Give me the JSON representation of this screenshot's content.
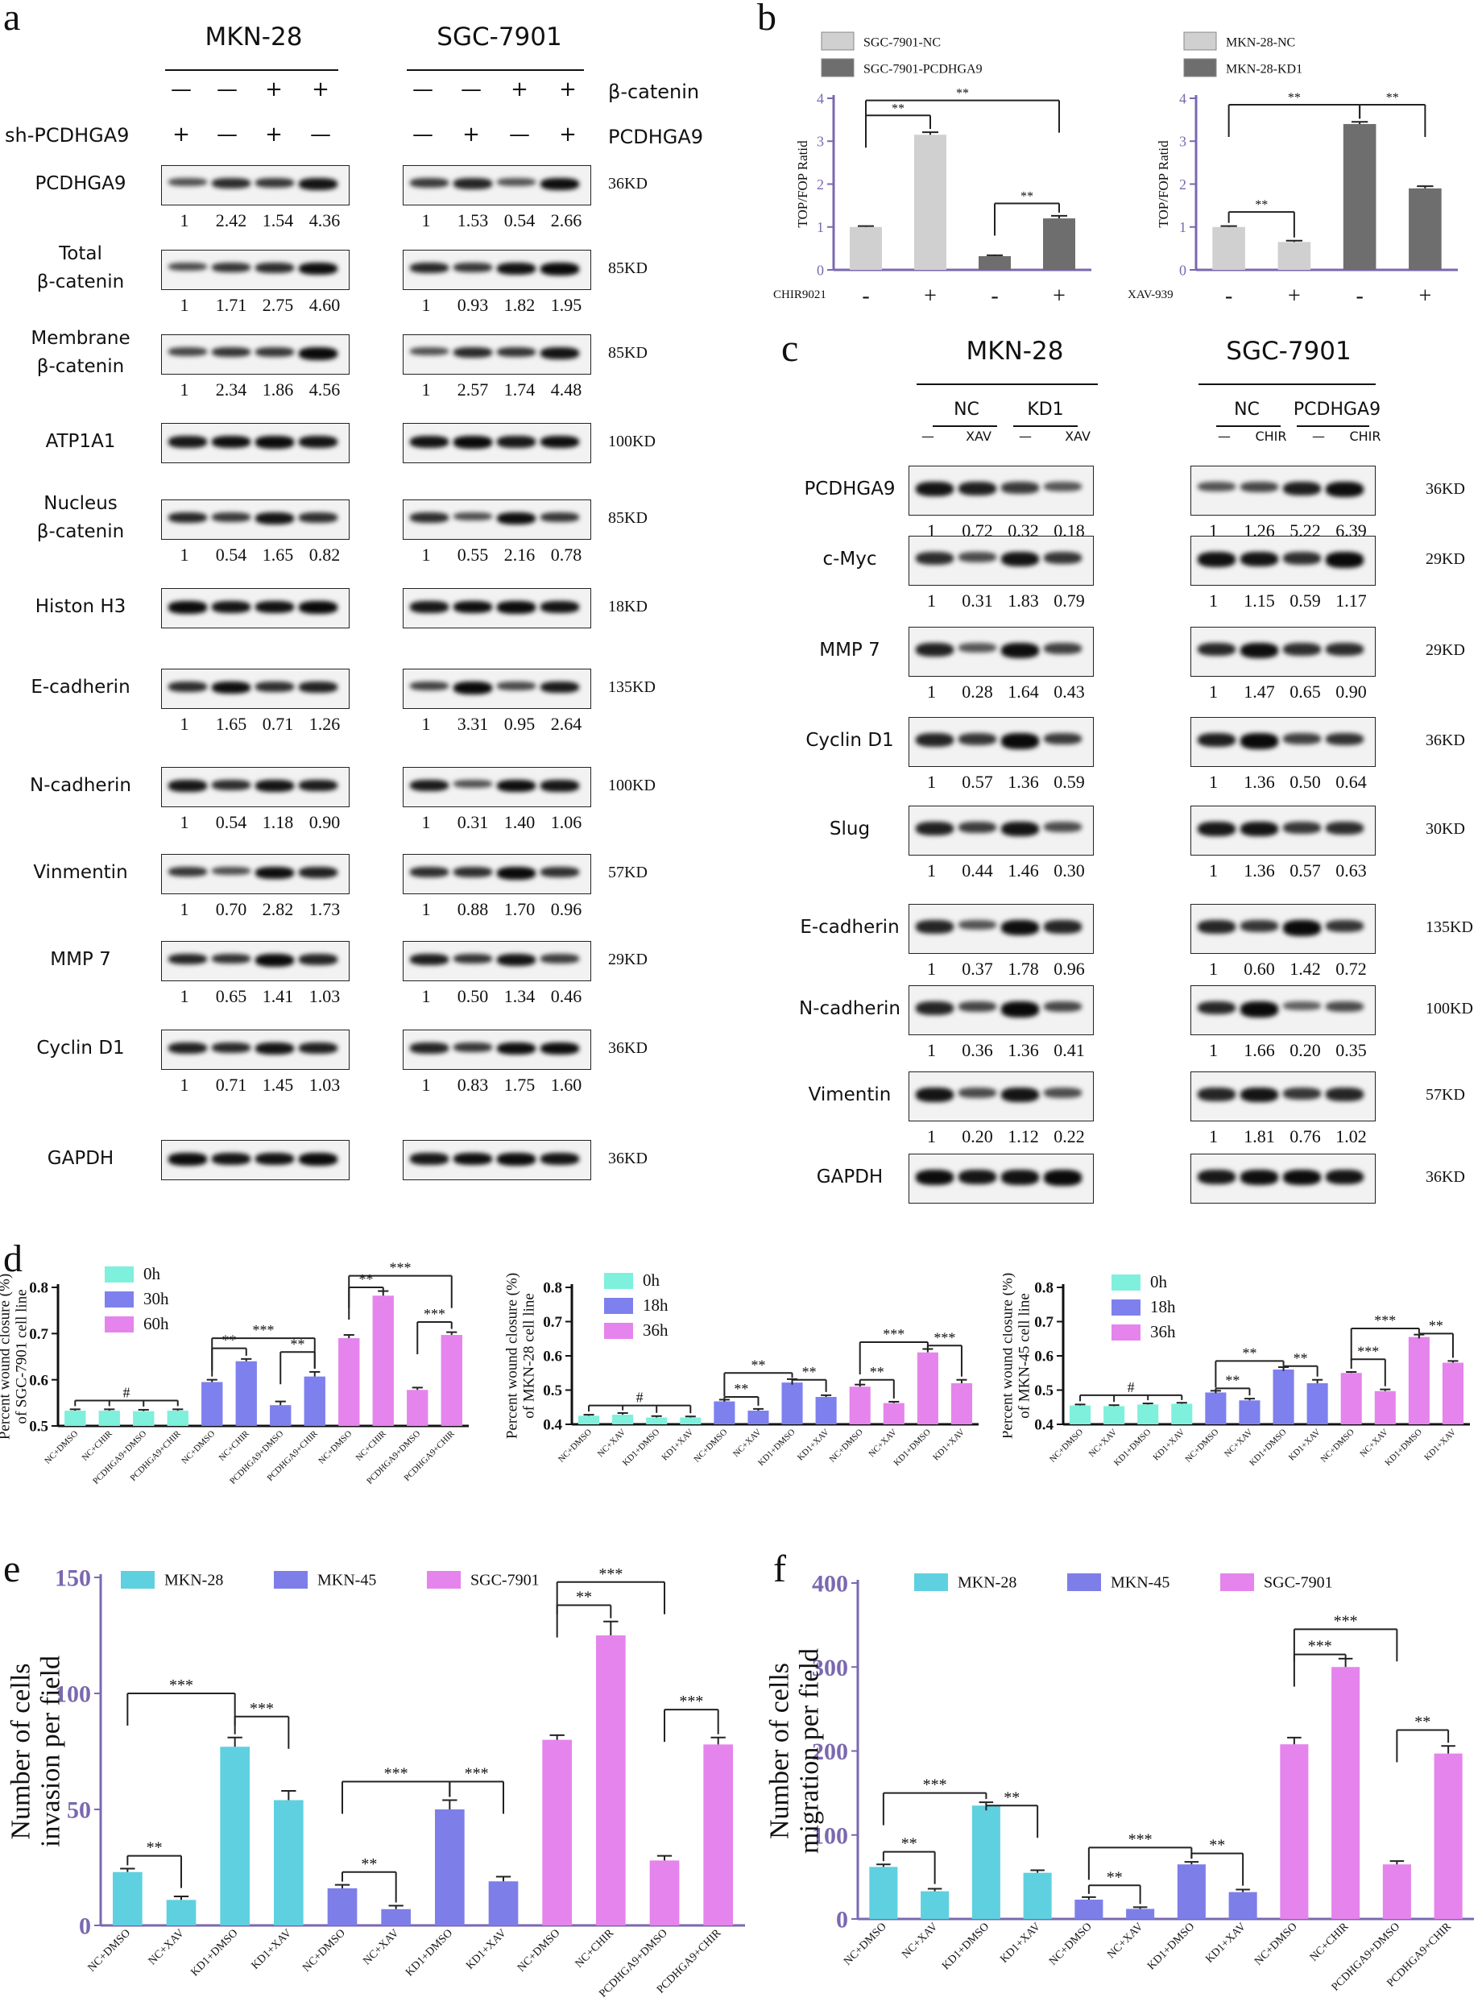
{
  "panels": {
    "a": "a",
    "b": "b",
    "c": "c",
    "d": "d",
    "e": "e",
    "f": "f"
  },
  "panel_a": {
    "left_title": "MKN-28",
    "right_title": "SGC-7901",
    "row_labels": {
      "bcatenin": "β-catenin",
      "shpcdhga9": "sh-PCDHGA9",
      "pcdhga9": "PCDHGA9"
    },
    "left_signs": {
      "bcatenin": [
        "—",
        "—",
        "+",
        "+"
      ],
      "sh": [
        "+",
        "—",
        "+",
        "—"
      ]
    },
    "right_signs": {
      "bcatenin": [
        "—",
        "—",
        "+",
        "+"
      ],
      "pcdhga9": [
        "—",
        "+",
        "—",
        "+"
      ]
    },
    "blots": [
      {
        "label": "PCDHGA9",
        "kd": "36KD",
        "left": [
          "1",
          "2.42",
          "1.54",
          "4.36"
        ],
        "right": [
          "1",
          "1.53",
          "0.54",
          "2.66"
        ]
      },
      {
        "label": "Total\nβ-catenin",
        "kd": "85KD",
        "left": [
          "1",
          "1.71",
          "2.75",
          "4.60"
        ],
        "right": [
          "1",
          "0.93",
          "1.82",
          "1.95"
        ]
      },
      {
        "label": "Membrane\nβ-catenin",
        "kd": "85KD",
        "left": [
          "1",
          "2.34",
          "1.86",
          "4.56"
        ],
        "right": [
          "1",
          "2.57",
          "1.74",
          "4.48"
        ]
      },
      {
        "label": "ATP1A1",
        "kd": "100KD",
        "left": [],
        "right": []
      },
      {
        "label": "Nucleus\nβ-catenin",
        "kd": "85KD",
        "left": [
          "1",
          "0.54",
          "1.65",
          "0.82"
        ],
        "right": [
          "1",
          "0.55",
          "2.16",
          "0.78"
        ]
      },
      {
        "label": "Histon H3",
        "kd": "18KD",
        "left": [],
        "right": []
      },
      {
        "label": "E-cadherin",
        "kd": "135KD",
        "left": [
          "1",
          "1.65",
          "0.71",
          "1.26"
        ],
        "right": [
          "1",
          "3.31",
          "0.95",
          "2.64"
        ]
      },
      {
        "label": "N-cadherin",
        "kd": "100KD",
        "left": [
          "1",
          "0.54",
          "1.18",
          "0.90"
        ],
        "right": [
          "1",
          "0.31",
          "1.40",
          "1.06"
        ]
      },
      {
        "label": "Vinmentin",
        "kd": "57KD",
        "left": [
          "1",
          "0.70",
          "2.82",
          "1.73"
        ],
        "right": [
          "1",
          "0.88",
          "1.70",
          "0.96"
        ]
      },
      {
        "label": "MMP 7",
        "kd": "29KD",
        "left": [
          "1",
          "0.65",
          "1.41",
          "1.03"
        ],
        "right": [
          "1",
          "0.50",
          "1.34",
          "0.46"
        ]
      },
      {
        "label": "Cyclin D1",
        "kd": "36KD",
        "left": [
          "1",
          "0.71",
          "1.45",
          "1.03"
        ],
        "right": [
          "1",
          "0.83",
          "1.75",
          "1.60"
        ]
      },
      {
        "label": "GAPDH",
        "kd": "36KD",
        "left": [],
        "right": []
      }
    ]
  },
  "panel_c": {
    "left_title": "MKN-28",
    "right_title": "SGC-7901",
    "left_groups": [
      "NC",
      "KD1"
    ],
    "right_groups": [
      "NC",
      "PCDHGA9"
    ],
    "left_treat": [
      "—",
      "XAV",
      "—",
      "XAV"
    ],
    "right_treat": [
      "—",
      "CHIR",
      "—",
      "CHIR"
    ],
    "blots": [
      {
        "label": "PCDHGA9",
        "kd": "36KD",
        "left": [
          "1",
          "0.72",
          "0.32",
          "0.18"
        ],
        "right": [
          "1",
          "1.26",
          "5.22",
          "6.39"
        ]
      },
      {
        "label": "c-Myc",
        "kd": "29KD",
        "left": [
          "1",
          "0.31",
          "1.83",
          "0.79"
        ],
        "right": [
          "1",
          "1.15",
          "0.59",
          "1.17"
        ]
      },
      {
        "label": "MMP 7",
        "kd": "29KD",
        "left": [
          "1",
          "0.28",
          "1.64",
          "0.43"
        ],
        "right": [
          "1",
          "1.47",
          "0.65",
          "0.90"
        ]
      },
      {
        "label": "Cyclin D1",
        "kd": "36KD",
        "left": [
          "1",
          "0.57",
          "1.36",
          "0.59"
        ],
        "right": [
          "1",
          "1.36",
          "0.50",
          "0.64"
        ]
      },
      {
        "label": "Slug",
        "kd": "30KD",
        "left": [
          "1",
          "0.44",
          "1.46",
          "0.30"
        ],
        "right": [
          "1",
          "1.36",
          "0.57",
          "0.63"
        ]
      },
      {
        "label": "E-cadherin",
        "kd": "135KD",
        "left": [
          "1",
          "0.37",
          "1.78",
          "0.96"
        ],
        "right": [
          "1",
          "0.60",
          "1.42",
          "0.72"
        ]
      },
      {
        "label": "N-cadherin",
        "kd": "100KD",
        "left": [
          "1",
          "0.36",
          "1.36",
          "0.41"
        ],
        "right": [
          "1",
          "1.66",
          "0.20",
          "0.35"
        ]
      },
      {
        "label": "Vimentin",
        "kd": "57KD",
        "left": [
          "1",
          "0.20",
          "1.12",
          "0.22"
        ],
        "right": [
          "1",
          "1.81",
          "0.76",
          "1.02"
        ]
      },
      {
        "label": "GAPDH",
        "kd": "36KD",
        "left": [],
        "right": []
      }
    ]
  },
  "colors": {
    "light_gray": "#d0d0d0",
    "dark_gray": "#6e6e6e",
    "cyan": "#5fd0e0",
    "mint": "#7ef0dc",
    "blue": "#7e80ee",
    "pink": "#e584ec",
    "violet": "#7e7ee9",
    "axis_purple": "#7a68b0"
  },
  "chart_data": [
    {
      "id": "b1",
      "type": "bar",
      "ylabel": "TOP/FOP Ratid",
      "ylim": [
        0,
        4
      ],
      "yticks": [
        "0",
        "1",
        "2",
        "3",
        "4"
      ],
      "legend": [
        "SGC-7901-NC",
        "SGC-7901-PCDHGA9"
      ],
      "row_label": "CHIR9021",
      "row_signs": [
        "-",
        "+",
        "-",
        "+"
      ],
      "values": [
        1.0,
        3.15,
        0.32,
        1.2
      ],
      "errors": [
        0.02,
        0.06,
        0.02,
        0.06
      ],
      "series_index": [
        0,
        0,
        1,
        1
      ],
      "sig": [
        {
          "from": 0,
          "to": 1,
          "label": "**",
          "level": 3.6
        },
        {
          "from": 0,
          "to": 3,
          "label": "**",
          "level": 3.95
        },
        {
          "from": 2,
          "to": 3,
          "label": "**",
          "level": 1.55
        }
      ]
    },
    {
      "id": "b2",
      "type": "bar",
      "ylabel": "TOP/FOP Ratid",
      "ylim": [
        0,
        4
      ],
      "yticks": [
        "0",
        "1",
        "2",
        "3",
        "4"
      ],
      "legend": [
        "MKN-28-NC",
        "MKN-28-KD1"
      ],
      "row_label": "XAV-939",
      "row_signs": [
        "-",
        "+",
        "-",
        "+"
      ],
      "values": [
        1.0,
        0.65,
        3.4,
        1.9
      ],
      "errors": [
        0.02,
        0.03,
        0.05,
        0.05
      ],
      "series_index": [
        0,
        0,
        1,
        1
      ],
      "sig": [
        {
          "from": 0,
          "to": 2,
          "label": "**",
          "level": 3.85
        },
        {
          "from": 0,
          "to": 1,
          "label": "**",
          "level": 1.35
        },
        {
          "from": 2,
          "to": 3,
          "label": "**",
          "level": 3.85
        }
      ]
    },
    {
      "id": "d1",
      "type": "bar",
      "ylabel": "Percent wound closure (%)\nof SGC-7901 cell line",
      "ylim": [
        0.5,
        0.8
      ],
      "yticks": [
        "0.5",
        "0.6",
        "0.7",
        "0.8"
      ],
      "legend": [
        "0h",
        "30h",
        "60h"
      ],
      "categories": [
        "NC+DMSO",
        "NC+CHIR",
        "PCDHGA9+DMSO",
        "PCDHGA9+CHIR",
        "NC+DMSO",
        "NC+CHIR",
        "PCDHGA9+DMSO",
        "PCDHGA9+CHIR",
        "NC+DMSO",
        "NC+CHIR",
        "PCDHGA9+DMSO",
        "PCDHGA9+CHIR"
      ],
      "values": [
        0.533,
        0.533,
        0.532,
        0.533,
        0.595,
        0.64,
        0.545,
        0.607,
        0.69,
        0.782,
        0.578,
        0.697
      ],
      "errors": [
        0.003,
        0.003,
        0.003,
        0.003,
        0.005,
        0.005,
        0.008,
        0.01,
        0.007,
        0.01,
        0.005,
        0.006
      ],
      "series_index": [
        0,
        0,
        0,
        0,
        1,
        1,
        1,
        1,
        2,
        2,
        2,
        2
      ],
      "sig": [
        {
          "from": 0,
          "to": 3,
          "label": "#",
          "level": 0.555,
          "ticks": [
            0,
            1,
            2,
            3
          ]
        },
        {
          "from": 4,
          "to": 5,
          "label": "**",
          "level": 0.668
        },
        {
          "from": 4,
          "to": 7,
          "label": "***",
          "level": 0.69
        },
        {
          "from": 6,
          "to": 7,
          "label": "**",
          "level": 0.66
        },
        {
          "from": 8,
          "to": 9,
          "label": "**",
          "level": 0.8
        },
        {
          "from": 8,
          "to": 11,
          "label": "***",
          "level": 0.825
        },
        {
          "from": 10,
          "to": 11,
          "label": "***",
          "level": 0.725
        }
      ]
    },
    {
      "id": "d2",
      "type": "bar",
      "ylabel": "Percent wound closure (%)\nof MKN-28 cell line",
      "ylim": [
        0.4,
        0.8
      ],
      "yticks": [
        "0.4",
        "0.5",
        "0.6",
        "0.7",
        "0.8"
      ],
      "legend": [
        "0h",
        "18h",
        "36h"
      ],
      "categories": [
        "NC+DMSO",
        "NC+XAV",
        "KD1+DMSO",
        "KD1+XAV",
        "NC+DMSO",
        "NC+XAV",
        "KD1+DMSO",
        "KD1+XAV",
        "NC+DMSO",
        "NC+XAV",
        "KD1+DMSO",
        "KD1+XAV"
      ],
      "values": [
        0.425,
        0.428,
        0.42,
        0.42,
        0.467,
        0.44,
        0.522,
        0.48,
        0.51,
        0.462,
        0.61,
        0.52
      ],
      "errors": [
        0.003,
        0.005,
        0.004,
        0.003,
        0.005,
        0.005,
        0.01,
        0.005,
        0.006,
        0.004,
        0.01,
        0.01
      ],
      "series_index": [
        0,
        0,
        0,
        0,
        1,
        1,
        1,
        1,
        2,
        2,
        2,
        2
      ],
      "sig": [
        {
          "from": 0,
          "to": 3,
          "label": "#",
          "level": 0.455,
          "ticks": [
            0,
            1,
            2,
            3
          ]
        },
        {
          "from": 4,
          "to": 5,
          "label": "**",
          "level": 0.48
        },
        {
          "from": 4,
          "to": 6,
          "label": "**",
          "level": 0.55
        },
        {
          "from": 6,
          "to": 7,
          "label": "**",
          "level": 0.53
        },
        {
          "from": 8,
          "to": 9,
          "label": "**",
          "level": 0.53
        },
        {
          "from": 8,
          "to": 10,
          "label": "***",
          "level": 0.64
        },
        {
          "from": 10,
          "to": 11,
          "label": "***",
          "level": 0.63
        }
      ]
    },
    {
      "id": "d3",
      "type": "bar",
      "ylabel": "Percent wound closure (%)\nof MKN-45 cell line",
      "ylim": [
        0.4,
        0.8
      ],
      "yticks": [
        "0.4",
        "0.5",
        "0.6",
        "0.7",
        "0.8"
      ],
      "legend": [
        "0h",
        "18h",
        "36h"
      ],
      "categories": [
        "NC+DMSO",
        "NC+XAV",
        "KD1+DMSO",
        "KD1+XAV",
        "NC+DMSO",
        "NC+XAV",
        "KD1+DMSO",
        "KD1+XAV",
        "NC+DMSO",
        "NC+XAV",
        "KD1+DMSO",
        "KD1+XAV"
      ],
      "values": [
        0.455,
        0.453,
        0.458,
        0.46,
        0.493,
        0.47,
        0.56,
        0.52,
        0.55,
        0.497,
        0.655,
        0.58
      ],
      "errors": [
        0.003,
        0.003,
        0.003,
        0.003,
        0.005,
        0.005,
        0.007,
        0.01,
        0.003,
        0.005,
        0.007,
        0.005
      ],
      "series_index": [
        0,
        0,
        0,
        0,
        1,
        1,
        1,
        1,
        2,
        2,
        2,
        2
      ],
      "sig": [
        {
          "from": 0,
          "to": 3,
          "label": "#",
          "level": 0.485,
          "ticks": [
            0,
            1,
            2,
            3
          ]
        },
        {
          "from": 4,
          "to": 5,
          "label": "**",
          "level": 0.505
        },
        {
          "from": 4,
          "to": 6,
          "label": "**",
          "level": 0.585
        },
        {
          "from": 6,
          "to": 7,
          "label": "**",
          "level": 0.57
        },
        {
          "from": 8,
          "to": 9,
          "label": "***",
          "level": 0.59
        },
        {
          "from": 8,
          "to": 10,
          "label": "***",
          "level": 0.68
        },
        {
          "from": 10,
          "to": 11,
          "label": "**",
          "level": 0.665
        }
      ]
    },
    {
      "id": "e",
      "type": "bar",
      "ylabel": "Number of cells\ninvasion per field",
      "ylim": [
        0,
        150
      ],
      "yticks": [
        "0",
        "50",
        "100",
        "150"
      ],
      "legend": [
        "MKN-28",
        "MKN-45",
        "SGC-7901"
      ],
      "categories": [
        "NC+DMSO",
        "NC+XAV",
        "KD1+DMSO",
        "KD1+XAV",
        "NC+DMSO",
        "NC+XAV",
        "KD1+DMSO",
        "KD1+XAV",
        "NC+DMSO",
        "NC+CHIR",
        "PCDHGA9+DMSO",
        "PCDHGA9+CHIR"
      ],
      "values": [
        23,
        11,
        77,
        54,
        16,
        7,
        50,
        19,
        80,
        125,
        28,
        78
      ],
      "errors": [
        1.5,
        1.5,
        4,
        4,
        1.5,
        1.5,
        4,
        2,
        2,
        6,
        2,
        3
      ],
      "series_index": [
        0,
        0,
        0,
        0,
        1,
        1,
        1,
        1,
        2,
        2,
        2,
        2
      ],
      "sig": [
        {
          "from": 0,
          "to": 1,
          "label": "**",
          "level": 30
        },
        {
          "from": 0,
          "to": 2,
          "label": "***",
          "level": 100
        },
        {
          "from": 2,
          "to": 3,
          "label": "***",
          "level": 90
        },
        {
          "from": 4,
          "to": 5,
          "label": "**",
          "level": 23
        },
        {
          "from": 4,
          "to": 6,
          "label": "***",
          "level": 62
        },
        {
          "from": 6,
          "to": 7,
          "label": "***",
          "level": 62
        },
        {
          "from": 8,
          "to": 9,
          "label": "**",
          "level": 138
        },
        {
          "from": 8,
          "to": 10,
          "label": "***",
          "level": 148
        },
        {
          "from": 10,
          "to": 11,
          "label": "***",
          "level": 93
        }
      ]
    },
    {
      "id": "f",
      "type": "bar",
      "ylabel": "Number of cells\nmigration per field",
      "ylim": [
        0,
        400
      ],
      "yticks": [
        "0",
        "100",
        "200",
        "300",
        "400"
      ],
      "legend": [
        "MKN-28",
        "MKN-45",
        "SGC-7901"
      ],
      "categories": [
        "NC+DMSO",
        "NC+XAV",
        "KD1+DMSO",
        "KD1+XAV",
        "NC+DMSO",
        "NC+XAV",
        "KD1+DMSO",
        "KD1+XAV",
        "NC+DMSO",
        "NC+CHIR",
        "PCDHGA9+DMSO",
        "PCDHGA9+CHIR"
      ],
      "values": [
        62,
        33,
        135,
        55,
        23,
        12,
        65,
        32,
        208,
        300,
        65,
        197
      ],
      "errors": [
        3,
        3,
        4,
        3,
        3,
        2,
        3,
        3,
        8,
        10,
        4,
        9
      ],
      "series_index": [
        0,
        0,
        0,
        0,
        1,
        1,
        1,
        1,
        2,
        2,
        2,
        2
      ],
      "sig": [
        {
          "from": 0,
          "to": 1,
          "label": "**",
          "level": 80
        },
        {
          "from": 0,
          "to": 2,
          "label": "***",
          "level": 150
        },
        {
          "from": 2,
          "to": 3,
          "label": "**",
          "level": 135
        },
        {
          "from": 4,
          "to": 5,
          "label": "**",
          "level": 40
        },
        {
          "from": 4,
          "to": 6,
          "label": "***",
          "level": 85
        },
        {
          "from": 6,
          "to": 7,
          "label": "**",
          "level": 78
        },
        {
          "from": 8,
          "to": 9,
          "label": "***",
          "level": 315
        },
        {
          "from": 8,
          "to": 10,
          "label": "***",
          "level": 345
        },
        {
          "from": 10,
          "to": 11,
          "label": "**",
          "level": 225
        }
      ]
    }
  ]
}
